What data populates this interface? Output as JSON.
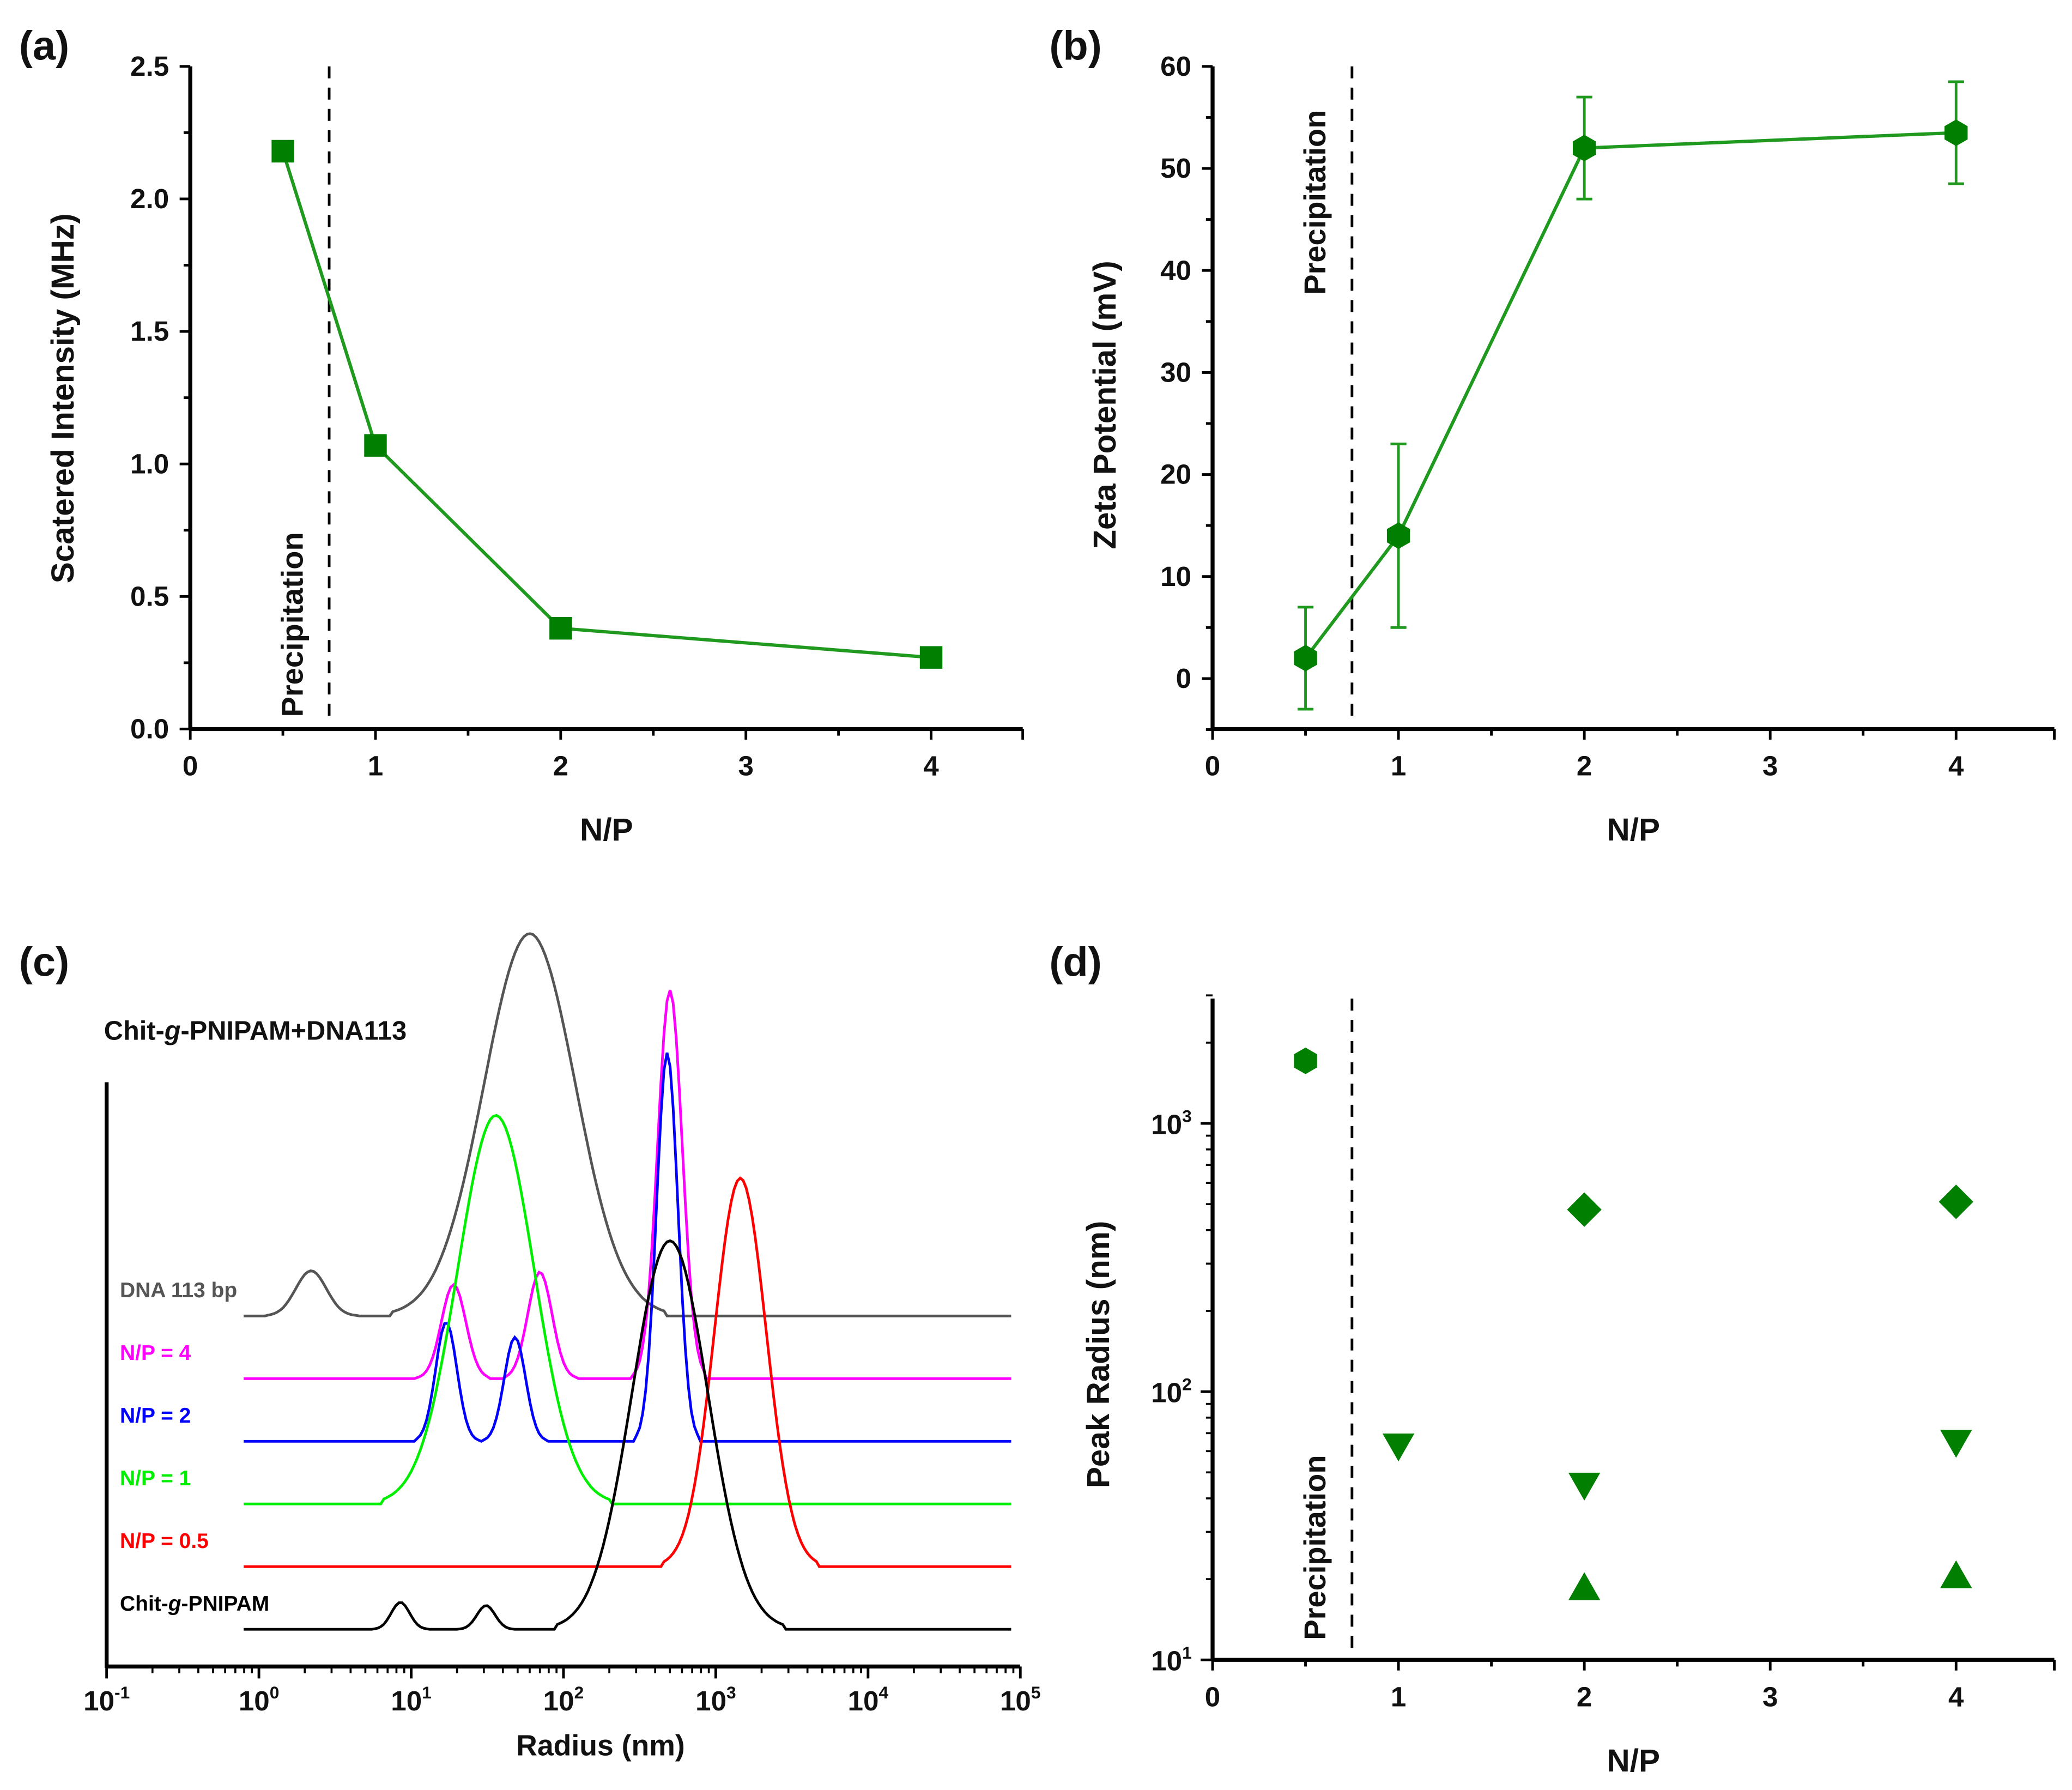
{
  "colors": {
    "marker": "#007f00",
    "line": "#1f9a1f",
    "axis": "#000000"
  },
  "chart_data": [
    {
      "panel": "(a)",
      "type": "line",
      "xlabel": "N/P",
      "ylabel": "Scatered Intensity (MHz)",
      "xlim": [
        0,
        4.5
      ],
      "ylim": [
        0,
        2.5
      ],
      "xticks": [
        "0",
        "1",
        "2",
        "3",
        "4"
      ],
      "yticks": [
        "0.0",
        "0.5",
        "1.0",
        "1.5",
        "2.0",
        "2.5"
      ],
      "marker": "square",
      "x": [
        0.5,
        1,
        2,
        4
      ],
      "y": [
        2.18,
        1.07,
        0.38,
        0.27
      ],
      "annotation": {
        "text": "Precipitation",
        "line_x": 0.75,
        "style": "dashed vertical line"
      }
    },
    {
      "panel": "(b)",
      "type": "line",
      "xlabel": "N/P",
      "ylabel": "Zeta Potential (mV)",
      "xlim": [
        0,
        4.5
      ],
      "ylim": [
        -5,
        60
      ],
      "xticks": [
        "0",
        "1",
        "2",
        "3",
        "4"
      ],
      "yticks": [
        "0",
        "10",
        "20",
        "30",
        "40",
        "50",
        "60"
      ],
      "marker": "hexagon",
      "x": [
        0.5,
        1,
        2,
        4
      ],
      "y": [
        2,
        14,
        52,
        53.5
      ],
      "yerr": [
        5,
        9,
        5,
        5
      ],
      "annotation": {
        "text": "Precipitation",
        "line_x": 0.75,
        "style": "dashed vertical line"
      }
    },
    {
      "panel": "(c)",
      "type": "line",
      "title": "Chit-g-PNIPAM+DNA113",
      "title_parts": [
        "Chit-",
        "g",
        "-PNIPAM+DNA113"
      ],
      "xlabel": "Radius (nm)",
      "xscale": "log",
      "xlim": [
        0.1,
        100000
      ],
      "xticks": [
        {
          "base": "10",
          "exp": "-1"
        },
        {
          "base": "10",
          "exp": "0"
        },
        {
          "base": "10",
          "exp": "1"
        },
        {
          "base": "10",
          "exp": "2"
        },
        {
          "base": "10",
          "exp": "3"
        },
        {
          "base": "10",
          "exp": "4"
        },
        {
          "base": "10",
          "exp": "5"
        }
      ],
      "series": [
        {
          "name": "DNA 113 bp",
          "color": "#555555",
          "offset": 5,
          "peaks": [
            {
              "radius_nm": 2.2,
              "intensity": 0.72,
              "log_width": 0.1
            },
            {
              "radius_nm": 60,
              "intensity": 6.1,
              "log_width": 0.3
            }
          ]
        },
        {
          "name": "N/P = 4",
          "color": "#ff00ff",
          "offset": 4,
          "peaks": [
            {
              "radius_nm": 19,
              "intensity": 1.5,
              "log_width": 0.08
            },
            {
              "radius_nm": 70,
              "intensity": 1.7,
              "log_width": 0.08
            },
            {
              "radius_nm": 500,
              "intensity": 6.2,
              "log_width": 0.08
            }
          ]
        },
        {
          "name": "N/P = 2",
          "color": "#0000ff",
          "offset": 3,
          "peaks": [
            {
              "radius_nm": 17,
              "intensity": 1.9,
              "log_width": 0.07
            },
            {
              "radius_nm": 48,
              "intensity": 1.66,
              "log_width": 0.07
            },
            {
              "radius_nm": 480,
              "intensity": 6.2,
              "log_width": 0.07
            }
          ]
        },
        {
          "name": "N/P = 1",
          "color": "#00ee00",
          "offset": 2,
          "peaks": [
            {
              "radius_nm": 36,
              "intensity": 6.2,
              "log_width": 0.25
            }
          ]
        },
        {
          "name": "N/P = 0.5",
          "color": "#ff0000",
          "offset": 1,
          "peaks": [
            {
              "radius_nm": 1450,
              "intensity": 6.2,
              "log_width": 0.17
            }
          ]
        },
        {
          "name": "Chit-g-PNIPAM",
          "name_parts": [
            "Chit-",
            "g",
            "-PNIPAM"
          ],
          "color": "#000000",
          "offset": 0,
          "peaks": [
            {
              "radius_nm": 8.5,
              "intensity": 0.43,
              "log_width": 0.06
            },
            {
              "radius_nm": 31,
              "intensity": 0.38,
              "log_width": 0.06
            },
            {
              "radius_nm": 500,
              "intensity": 6.2,
              "log_width": 0.25
            }
          ]
        }
      ]
    },
    {
      "panel": "(d)",
      "type": "scatter",
      "xlabel": "N/P",
      "ylabel": "Peak Radius (nm)",
      "yscale": "log",
      "xlim": [
        0,
        4.5
      ],
      "ylim": [
        10,
        3000
      ],
      "xticks": [
        "0",
        "1",
        "2",
        "3",
        "4"
      ],
      "yticks": [
        {
          "base": "10",
          "exp": "1"
        },
        {
          "base": "10",
          "exp": "2"
        },
        {
          "base": "10",
          "exp": "3"
        }
      ],
      "points": [
        {
          "x": 0.5,
          "y": 1710,
          "marker": "hexagon"
        },
        {
          "x": 2,
          "y": 477,
          "marker": "diamond"
        },
        {
          "x": 4,
          "y": 510,
          "marker": "diamond"
        },
        {
          "x": 1,
          "y": 63,
          "marker": "triangle-down"
        },
        {
          "x": 2,
          "y": 45,
          "marker": "triangle-down"
        },
        {
          "x": 4,
          "y": 65,
          "marker": "triangle-down"
        },
        {
          "x": 2,
          "y": 18.5,
          "marker": "triangle-up"
        },
        {
          "x": 4,
          "y": 20.5,
          "marker": "triangle-up"
        }
      ],
      "annotation": {
        "text": "Precipitation",
        "line_x": 0.75,
        "style": "dashed vertical line"
      }
    }
  ]
}
